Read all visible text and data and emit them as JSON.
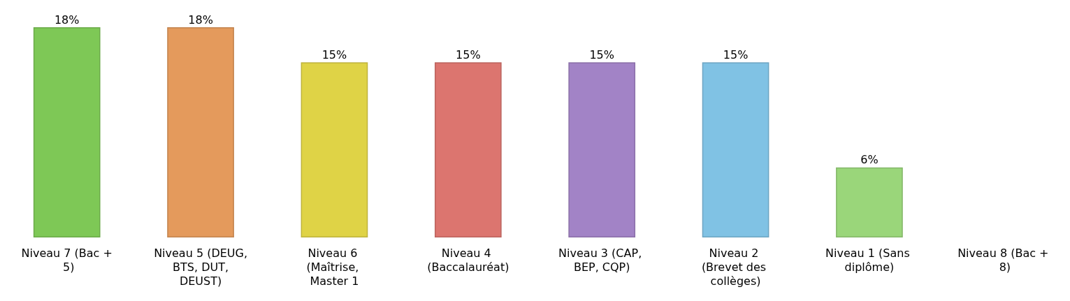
{
  "chart_data": {
    "type": "bar",
    "categories": [
      "Niveau 7 (Bac + 5)",
      "Niveau 5 (DEUG, BTS, DUT, DEUST)",
      "Niveau 6 (Maîtrise, Master 1",
      "Niveau 4 (Baccalauréat)",
      "Niveau 3 (CAP, BEP, CQP)",
      "Niveau 2 (Brevet des collèges)",
      "Niveau 1 (Sans diplôme)",
      "Niveau 8 (Bac + 8)"
    ],
    "values": [
      18,
      18,
      15,
      15,
      15,
      15,
      6,
      null
    ],
    "value_labels": [
      "18%",
      "18%",
      "15%",
      "15%",
      "15%",
      "15%",
      "6%",
      null
    ],
    "colors": [
      "#7ec856",
      "#e49a5c",
      "#dfd346",
      "#dc756f",
      "#a283c6",
      "#80c2e4",
      "#9ad67a",
      "#9ad67a"
    ],
    "grid": false
  }
}
